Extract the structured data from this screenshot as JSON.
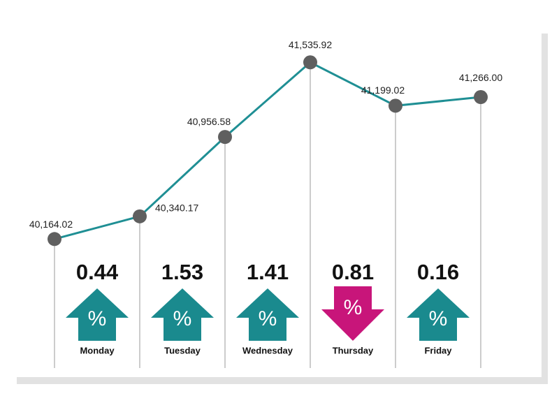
{
  "chart_data": {
    "type": "line",
    "values": [
      40164.02,
      40340.17,
      40956.58,
      41535.92,
      41199.02,
      41266.0
    ],
    "value_labels": [
      "40,164.02",
      "40,340.17",
      "40,956.58",
      "41,535.92",
      "41,199.02",
      "41,266.00"
    ],
    "color": "#1f8f94",
    "point_color": "#5f5f5f",
    "ylim": [
      39900,
      41700
    ],
    "changes": {
      "categories": [
        "Monday",
        "Tuesday",
        "Wednesday",
        "Thursday",
        "Friday"
      ],
      "values": [
        0.44,
        1.53,
        1.41,
        0.81,
        0.16
      ],
      "directions": [
        "up",
        "up",
        "up",
        "down",
        "up"
      ],
      "symbol": "%",
      "up_color": "#1a8a8e",
      "down_color": "#c8157a"
    }
  }
}
